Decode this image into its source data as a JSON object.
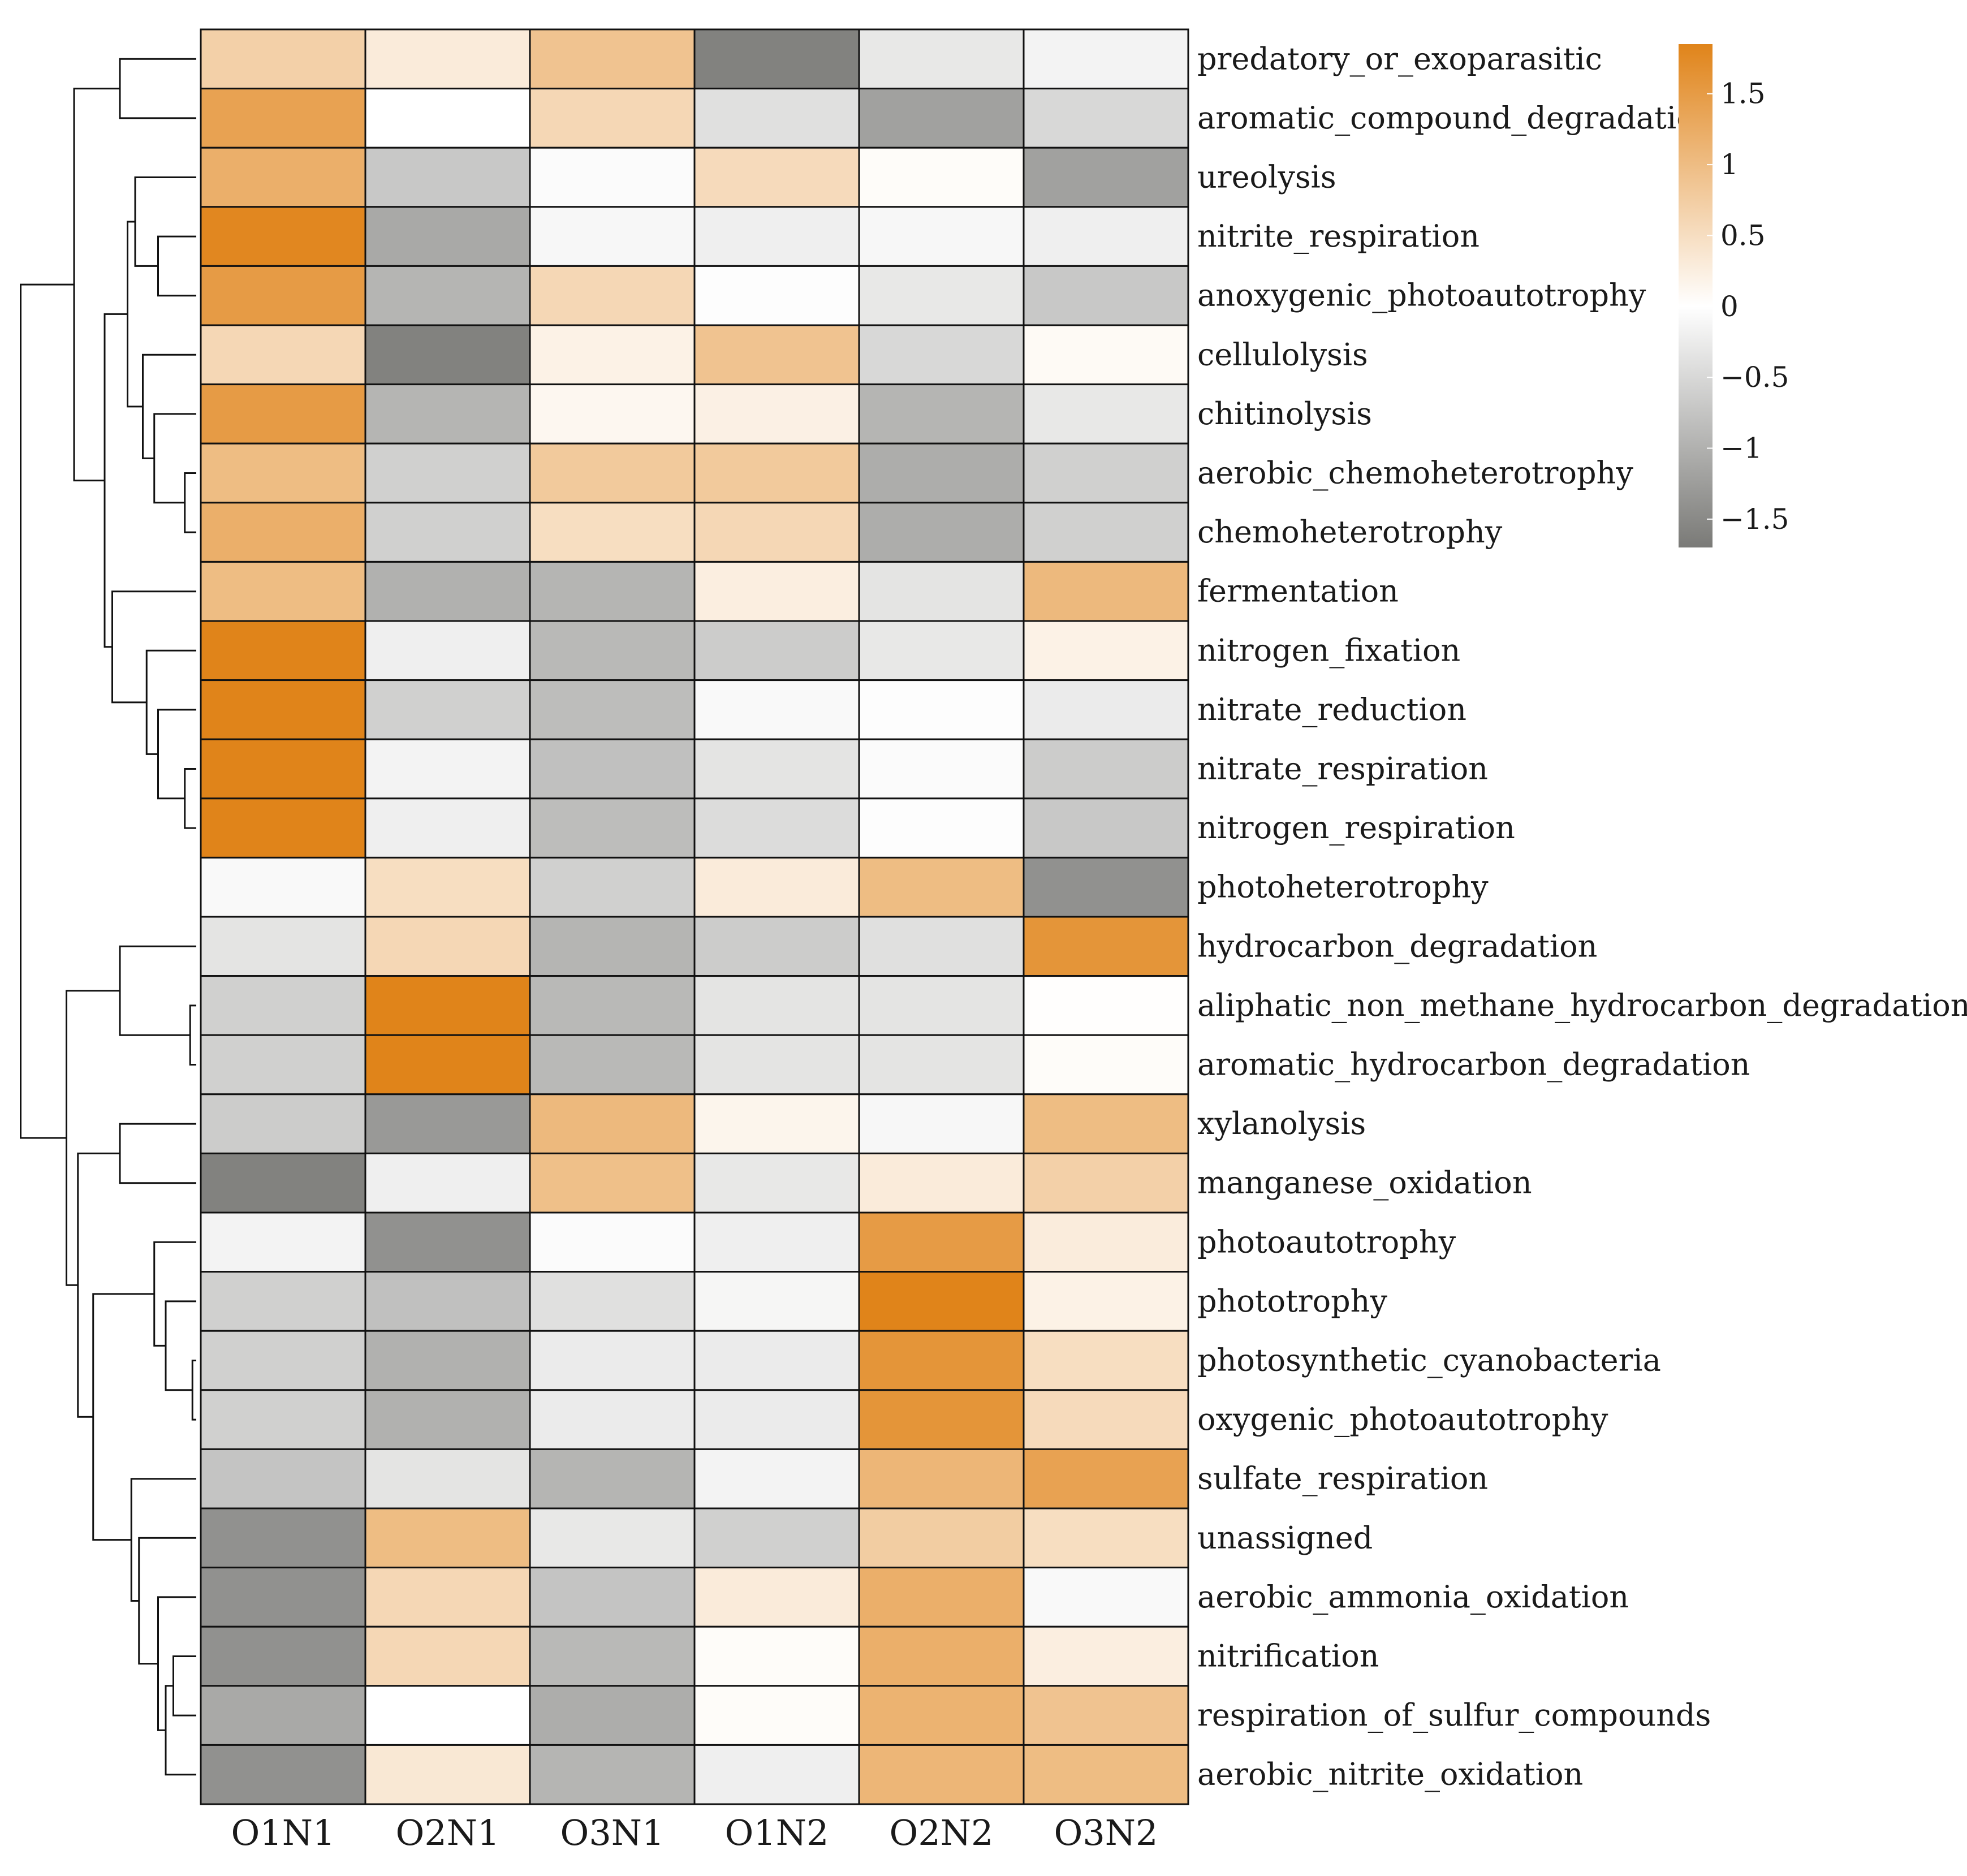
{
  "chart_data": {
    "type": "heatmap",
    "title": "",
    "columns": [
      "O1N1",
      "O2N1",
      "O3N1",
      "O1N2",
      "O2N2",
      "O3N2"
    ],
    "rows": [
      "predatory_or_exoparasitic",
      "aromatic_compound_degradatic",
      "ureolysis",
      "nitrite_respiration",
      "anoxygenic_photoautotrophy",
      "cellulolysis",
      "chitinolysis",
      "aerobic_chemoheterotrophy",
      "chemoheterotrophy",
      "fermentation",
      "nitrogen_fixation",
      "nitrate_reduction",
      "nitrate_respiration",
      "nitrogen_respiration",
      "photoheterotrophy",
      "hydrocarbon_degradation",
      "aliphatic_non_methane_hydrocarbon_degradation",
      "aromatic_hydrocarbon_degradation",
      "xylanolysis",
      "manganese_oxidation",
      "photoautotrophy",
      "phototrophy",
      "photosynthetic_cyanobacteria",
      "oxygenic_photoautotrophy",
      "sulfate_respiration",
      "unassigned",
      "aerobic_ammonia_oxidation",
      "nitrification",
      "respiration_of_sulfur_compounds",
      "aerobic_nitrite_oxidation"
    ],
    "values": [
      [
        0.7,
        0.3,
        0.9,
        -1.6,
        -0.3,
        -0.15
      ],
      [
        1.4,
        0.0,
        0.6,
        -0.4,
        -1.2,
        -0.5
      ],
      [
        1.2,
        -0.7,
        -0.05,
        0.55,
        0.05,
        -1.2
      ],
      [
        1.8,
        -1.1,
        -0.1,
        -0.2,
        -0.1,
        -0.2
      ],
      [
        1.5,
        -0.95,
        0.6,
        -0.02,
        -0.3,
        -0.7
      ],
      [
        0.6,
        -1.6,
        0.2,
        0.9,
        -0.5,
        0.08
      ],
      [
        1.5,
        -0.95,
        0.12,
        0.22,
        -0.95,
        -0.3
      ],
      [
        1.0,
        -0.6,
        0.8,
        0.8,
        -1.05,
        -0.6
      ],
      [
        1.2,
        -0.6,
        0.5,
        0.6,
        -1.05,
        -0.6
      ],
      [
        1.0,
        -1.0,
        -0.95,
        0.25,
        -0.35,
        1.05
      ],
      [
        1.9,
        -0.2,
        -0.9,
        -0.65,
        -0.3,
        0.2
      ],
      [
        1.9,
        -0.6,
        -0.85,
        -0.08,
        -0.02,
        -0.25
      ],
      [
        1.9,
        -0.15,
        -0.8,
        -0.35,
        -0.05,
        -0.65
      ],
      [
        1.9,
        -0.2,
        -0.85,
        -0.45,
        -0.03,
        -0.7
      ],
      [
        -0.08,
        0.5,
        -0.6,
        0.3,
        1.0,
        -1.4
      ],
      [
        -0.35,
        0.6,
        -0.95,
        -0.65,
        -0.4,
        1.6
      ],
      [
        -0.6,
        1.85,
        -0.9,
        -0.35,
        -0.35,
        0.02
      ],
      [
        -0.6,
        1.85,
        -0.9,
        -0.35,
        -0.35,
        0.05
      ],
      [
        -0.65,
        -1.3,
        1.05,
        0.15,
        -0.1,
        1.0
      ],
      [
        -1.6,
        -0.2,
        0.95,
        -0.3,
        0.3,
        0.7
      ],
      [
        -0.15,
        -1.4,
        -0.05,
        -0.2,
        1.5,
        0.28
      ],
      [
        -0.6,
        -0.8,
        -0.4,
        -0.12,
        1.9,
        0.2
      ],
      [
        -0.6,
        -1.0,
        -0.25,
        -0.25,
        1.6,
        0.5
      ],
      [
        -0.6,
        -1.0,
        -0.25,
        -0.25,
        1.6,
        0.55
      ],
      [
        -0.75,
        -0.35,
        -0.95,
        -0.15,
        1.1,
        1.4
      ],
      [
        -1.4,
        1.0,
        -0.3,
        -0.6,
        0.75,
        0.5
      ],
      [
        -1.4,
        0.6,
        -0.75,
        0.3,
        1.2,
        -0.08
      ],
      [
        -1.4,
        0.6,
        -0.9,
        0.05,
        1.2,
        0.25
      ],
      [
        -1.1,
        0.0,
        -1.05,
        0.05,
        1.15,
        0.9
      ],
      [
        -1.4,
        0.35,
        -0.95,
        -0.2,
        1.1,
        1.0
      ]
    ],
    "colorbar": {
      "range": [
        -1.7,
        1.85
      ],
      "ticks": [
        1.5,
        1,
        0.5,
        0,
        -0.5,
        -1,
        -1.5
      ],
      "tick_labels": [
        "1.5",
        "1",
        "0.5",
        "0",
        "−0.5",
        "−1",
        "−1.5"
      ],
      "colors": {
        "low": "#7a7a77",
        "mid": "#ffffff",
        "high": "#e0841a"
      }
    },
    "row_dendrogram": {
      "merges": [
        [
          0,
          1,
          1.0
        ],
        [
          3,
          4,
          0.5
        ],
        [
          2,
          -2,
          0.8
        ],
        [
          7,
          8,
          0.15
        ],
        [
          6,
          -4,
          0.55
        ],
        [
          5,
          -5,
          0.7
        ],
        [
          -3,
          -6,
          0.9
        ],
        [
          12,
          13,
          0.15
        ],
        [
          11,
          -8,
          0.5
        ],
        [
          10,
          -9,
          0.65
        ],
        [
          9,
          -10,
          1.1
        ],
        [
          -7,
          -11,
          1.2
        ],
        [
          -1,
          -12,
          1.6
        ],
        [
          16,
          17,
          0.08
        ],
        [
          15,
          -14,
          1.0
        ],
        [
          18,
          19,
          1.0
        ],
        [
          22,
          23,
          0.05
        ],
        [
          21,
          -17,
          0.4
        ],
        [
          20,
          -18,
          0.55
        ],
        [
          27,
          28,
          0.3
        ],
        [
          29,
          -20,
          0.4
        ],
        [
          26,
          -21,
          0.5
        ],
        [
          25,
          -22,
          0.75
        ],
        [
          24,
          -23,
          0.85
        ],
        [
          -19,
          -24,
          1.35
        ],
        [
          -16,
          -25,
          1.55
        ],
        [
          -15,
          -26,
          1.7
        ],
        [
          -13,
          -27,
          2.3
        ]
      ]
    }
  }
}
